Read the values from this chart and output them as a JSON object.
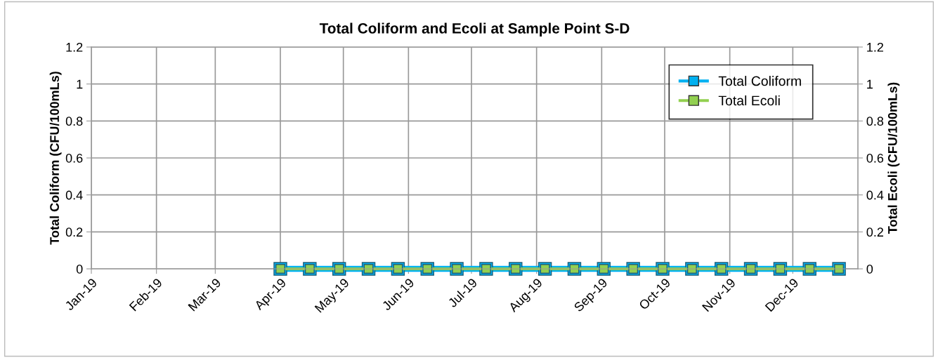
{
  "chart_data": {
    "type": "line",
    "title": "Total Coliform and Ecoli at Sample Point S-D",
    "ylabel": "Total Coliform (CFU/100mLs)",
    "y2label": "Total Ecoli (CFU/100mLs)",
    "x": [
      "2019-04-01",
      "2019-04-15",
      "2019-04-29",
      "2019-05-13",
      "2019-05-27",
      "2019-06-10",
      "2019-06-24",
      "2019-07-08",
      "2019-07-22",
      "2019-08-05",
      "2019-08-19",
      "2019-09-02",
      "2019-09-16",
      "2019-09-30",
      "2019-10-14",
      "2019-10-28",
      "2019-11-11",
      "2019-11-25",
      "2019-12-09",
      "2019-12-23"
    ],
    "series": [
      {
        "name": "Total Coliform",
        "color": "#00b0f0",
        "values": [
          0,
          0,
          0,
          0,
          0,
          0,
          0,
          0,
          0,
          0,
          0,
          0,
          0,
          0,
          0,
          0,
          0,
          0,
          0,
          0
        ]
      },
      {
        "name": "Total Ecoli",
        "color": "#92d050",
        "values": [
          0,
          0,
          0,
          0,
          0,
          0,
          0,
          0,
          0,
          0,
          0,
          0,
          0,
          0,
          0,
          0,
          0,
          0,
          0,
          0
        ]
      }
    ],
    "xlim": [
      "2019-01-01",
      "2020-01-01"
    ],
    "xticks": [
      {
        "value": "2019-01-01",
        "label": "Jan-19"
      },
      {
        "value": "2019-02-01",
        "label": "Feb-19"
      },
      {
        "value": "2019-03-01",
        "label": "Mar-19"
      },
      {
        "value": "2019-04-01",
        "label": "Apr-19"
      },
      {
        "value": "2019-05-01",
        "label": "May-19"
      },
      {
        "value": "2019-06-01",
        "label": "Jun-19"
      },
      {
        "value": "2019-07-01",
        "label": "Jul-19"
      },
      {
        "value": "2019-08-01",
        "label": "Aug-19"
      },
      {
        "value": "2019-09-01",
        "label": "Sep-19"
      },
      {
        "value": "2019-10-01",
        "label": "Oct-19"
      },
      {
        "value": "2019-11-01",
        "label": "Nov-19"
      },
      {
        "value": "2019-12-01",
        "label": "Dec-19"
      }
    ],
    "ylim": [
      0,
      1.2
    ],
    "yticks": [
      0,
      0.2,
      0.4,
      0.6,
      0.8,
      1,
      1.2
    ],
    "y2lim": [
      0,
      1.2
    ],
    "y2ticks": [
      0,
      0.2,
      0.4,
      0.6,
      0.8,
      1,
      1.2
    ],
    "grid": true,
    "legend": "top right",
    "marker": "square",
    "line_style": "solid"
  }
}
